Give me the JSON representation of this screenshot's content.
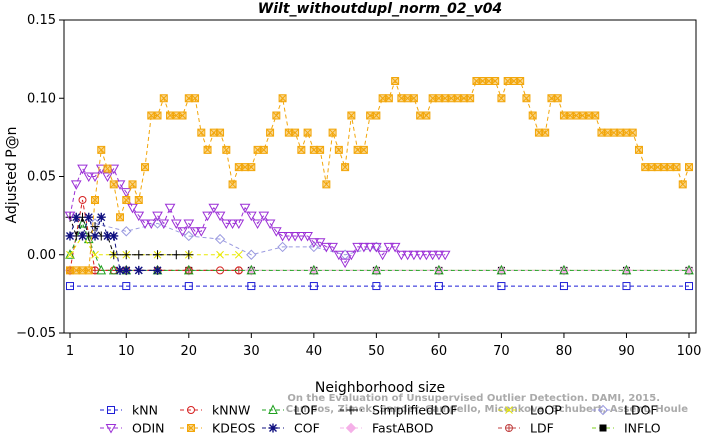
{
  "chart_data": {
    "type": "line",
    "title": "Wilt_withoutdupl_norm_02_v04",
    "xlabel": "Neighborhood size",
    "ylabel": "Adjusted P@n",
    "xlim": [
      1,
      100
    ],
    "ylim": [
      -0.05,
      0.15
    ],
    "x_ticks": [
      1,
      10,
      20,
      30,
      40,
      50,
      60,
      70,
      80,
      90,
      100
    ],
    "y_ticks": [
      -0.05,
      0.0,
      0.05,
      0.1,
      0.15
    ],
    "y_tick_labels": [
      "−0.05",
      "0.00",
      "0.05",
      "0.10",
      "0.15"
    ],
    "grid": false,
    "legend_position": "bottom",
    "watermark": [
      "Campos, Zimek, Sander, Campello, Micenkova, Schubert, Assent, Houle",
      "On the Evaluation of Unsupervised Outlier Detection. DAMI, 2015."
    ],
    "series": [
      {
        "name": "kNN",
        "color": "#1f1fd6",
        "marker": "square",
        "x": [
          1,
          10,
          20,
          30,
          40,
          50,
          60,
          70,
          80,
          90,
          100
        ],
        "y": [
          -0.02,
          -0.02,
          -0.02,
          -0.02,
          -0.02,
          -0.02,
          -0.02,
          -0.02,
          -0.02,
          -0.02,
          -0.02
        ]
      },
      {
        "name": "kNNW",
        "color": "#d62020",
        "marker": "circle",
        "x": [
          1,
          3,
          5,
          8,
          15,
          20,
          25,
          28
        ],
        "y": [
          -0.01,
          0.035,
          -0.01,
          -0.01,
          -0.01,
          -0.01,
          -0.01,
          -0.01
        ]
      },
      {
        "name": "LOF",
        "color": "#1fa01f",
        "marker": "triangle-up",
        "x": [
          1,
          3,
          4,
          6,
          8,
          10,
          15,
          20,
          30,
          40,
          50,
          60,
          70,
          80,
          90,
          100
        ],
        "y": [
          0.0,
          0.02,
          0.01,
          -0.01,
          -0.01,
          -0.01,
          -0.01,
          -0.01,
          -0.01,
          -0.01,
          -0.01,
          -0.01,
          -0.01,
          -0.01,
          -0.01,
          -0.01
        ]
      },
      {
        "name": "SimplifiedLOF",
        "color": "#000000",
        "marker": "plus",
        "x": [
          1,
          2,
          3,
          4,
          5,
          6,
          7,
          8,
          10,
          12,
          15,
          18,
          20
        ],
        "y": [
          0.024,
          0.012,
          0.024,
          0.012,
          0.018,
          0.012,
          0.012,
          0.0,
          0.0,
          0.0,
          0.0,
          0.0,
          0.0
        ]
      },
      {
        "name": "LoOP",
        "color": "#e8e800",
        "marker": "cross",
        "x": [
          1,
          3,
          5,
          8,
          10,
          15,
          20,
          25,
          28
        ],
        "y": [
          0.0,
          0.012,
          0.0,
          0.0,
          0.0,
          0.0,
          0.0,
          0.0,
          0.0
        ]
      },
      {
        "name": "LDOF",
        "color": "#9a9ae0",
        "marker": "diamond",
        "x": [
          5,
          10,
          15,
          20,
          25,
          30,
          35,
          40,
          45,
          50
        ],
        "y": [
          0.02,
          0.015,
          0.02,
          0.012,
          0.01,
          0.0,
          0.005,
          0.005,
          0.0,
          0.005
        ]
      },
      {
        "name": "ODIN",
        "color": "#9b2fd6",
        "marker": "triangle-down",
        "x": [
          1,
          2,
          3,
          4,
          5,
          6,
          7,
          8,
          9,
          10,
          11,
          12,
          13,
          14,
          15,
          16,
          17,
          18,
          19,
          20,
          21,
          22,
          23,
          24,
          25,
          26,
          27,
          28,
          29,
          30,
          31,
          32,
          33,
          34,
          35,
          36,
          37,
          38,
          39,
          40,
          41,
          42,
          43,
          44,
          45,
          46,
          47,
          48,
          49,
          50,
          51,
          52,
          53,
          54,
          55,
          56,
          57,
          58,
          59,
          60,
          61
        ],
        "y": [
          0.025,
          0.045,
          0.055,
          0.05,
          0.05,
          0.055,
          0.05,
          0.055,
          0.045,
          0.04,
          0.03,
          0.025,
          0.02,
          0.02,
          0.025,
          0.02,
          0.03,
          0.02,
          0.015,
          0.02,
          0.015,
          0.015,
          0.025,
          0.03,
          0.025,
          0.02,
          0.02,
          0.02,
          0.03,
          0.025,
          0.02,
          0.025,
          0.02,
          0.015,
          0.012,
          0.012,
          0.012,
          0.012,
          0.012,
          0.008,
          0.008,
          0.005,
          0.005,
          0.0,
          -0.005,
          0.0,
          0.005,
          0.005,
          0.005,
          0.005,
          0.0,
          0.005,
          0.005,
          0.0,
          0.0,
          0.0,
          0.0,
          0.0,
          0.0,
          0.0,
          0.0
        ]
      },
      {
        "name": "KDEOS",
        "color": "#f2a60a",
        "marker": "square-x",
        "x": [
          1,
          2,
          3,
          4,
          5,
          6,
          7,
          8,
          9,
          10,
          11,
          12,
          13,
          14,
          15,
          16,
          17,
          18,
          19,
          20,
          21,
          22,
          23,
          24,
          25,
          26,
          27,
          28,
          29,
          30,
          31,
          32,
          33,
          34,
          35,
          36,
          37,
          38,
          39,
          40,
          41,
          42,
          43,
          44,
          45,
          46,
          47,
          48,
          49,
          50,
          51,
          52,
          53,
          54,
          55,
          56,
          57,
          58,
          59,
          60,
          61,
          62,
          63,
          64,
          65,
          66,
          67,
          68,
          69,
          70,
          71,
          72,
          73,
          74,
          75,
          76,
          77,
          78,
          79,
          80,
          81,
          82,
          83,
          84,
          85,
          86,
          87,
          88,
          89,
          90,
          91,
          92,
          93,
          94,
          95,
          96,
          97,
          98,
          99,
          100
        ],
        "y": [
          -0.01,
          -0.01,
          -0.01,
          -0.01,
          0.035,
          0.067,
          0.055,
          0.045,
          0.024,
          0.035,
          0.045,
          0.035,
          0.056,
          0.089,
          0.089,
          0.1,
          0.089,
          0.089,
          0.089,
          0.1,
          0.1,
          0.078,
          0.067,
          0.078,
          0.078,
          0.067,
          0.045,
          0.056,
          0.056,
          0.056,
          0.067,
          0.067,
          0.078,
          0.089,
          0.1,
          0.078,
          0.078,
          0.067,
          0.078,
          0.067,
          0.067,
          0.045,
          0.078,
          0.067,
          0.056,
          0.089,
          0.067,
          0.067,
          0.089,
          0.089,
          0.1,
          0.1,
          0.111,
          0.1,
          0.1,
          0.1,
          0.089,
          0.089,
          0.1,
          0.1,
          0.1,
          0.1,
          0.1,
          0.1,
          0.1,
          0.111,
          0.111,
          0.111,
          0.111,
          0.1,
          0.111,
          0.111,
          0.111,
          0.1,
          0.089,
          0.078,
          0.078,
          0.1,
          0.1,
          0.089,
          0.089,
          0.089,
          0.089,
          0.089,
          0.089,
          0.078,
          0.078,
          0.078,
          0.078,
          0.078,
          0.078,
          0.067,
          0.056,
          0.056,
          0.056,
          0.056,
          0.056,
          0.056,
          0.045,
          0.056
        ]
      },
      {
        "name": "COF",
        "color": "#101080",
        "marker": "star",
        "x": [
          1,
          2,
          3,
          4,
          5,
          6,
          7,
          8,
          9,
          10,
          12,
          15
        ],
        "y": [
          0.012,
          0.024,
          0.012,
          0.024,
          0.012,
          0.024,
          0.012,
          0.012,
          -0.01,
          -0.01,
          -0.01,
          -0.01
        ]
      },
      {
        "name": "FastABOD",
        "color": "#f5b0e8",
        "marker": "diamond-filled",
        "x": [
          1,
          10,
          20,
          30,
          40,
          50,
          60,
          70,
          80,
          90,
          100
        ],
        "y": [
          -0.01,
          -0.01,
          -0.01,
          -0.01,
          -0.01,
          -0.01,
          -0.01,
          -0.01,
          -0.01,
          -0.01,
          -0.01
        ]
      },
      {
        "name": "LDF",
        "color": "#c04040",
        "marker": "circle-plus",
        "x": [
          1,
          5,
          10,
          20,
          28
        ],
        "y": [
          -0.01,
          -0.01,
          -0.01,
          -0.01,
          -0.01
        ]
      },
      {
        "name": "INFLO",
        "color": "#7fd21f",
        "marker": "square-star",
        "x": [
          1,
          10,
          20,
          30,
          40,
          50,
          60,
          70,
          80,
          90,
          100
        ],
        "y": [
          -0.01,
          -0.01,
          -0.01,
          -0.01,
          -0.01,
          -0.01,
          -0.01,
          -0.01,
          -0.01,
          -0.01,
          -0.01
        ]
      }
    ]
  }
}
